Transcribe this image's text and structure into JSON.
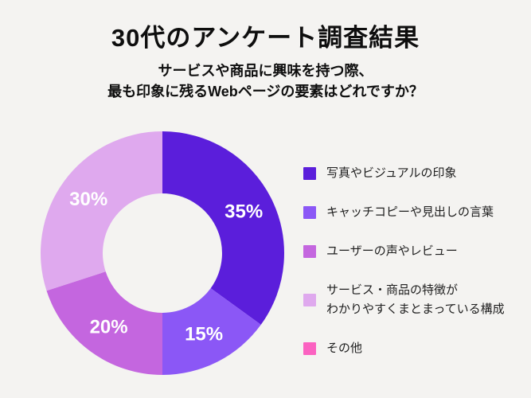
{
  "page": {
    "background_color": "#F4F3F1"
  },
  "header": {
    "title": "30代のアンケート調査結果",
    "subtitle": "サービスや商品に興味を持つ際、\n最も印象に残るWebページの要素はどれですか？"
  },
  "chart_data": {
    "type": "pie",
    "variant": "donut",
    "title": "30代のアンケート調査結果",
    "subtitle": "サービスや商品に興味を持つ際、最も印象に残るWebページの要素はどれですか？",
    "unit": "%",
    "start_angle_deg": 0,
    "direction": "clockwise",
    "inner_radius_ratio": 0.49,
    "legend_position": "right",
    "value_label_color": "#FFFFFF",
    "segments": [
      {
        "label": "写真やビジュアルの印象",
        "value": 35,
        "data_label": "35%",
        "color": "#5B1EDB"
      },
      {
        "label": "キャッチコピーや見出しの言葉",
        "value": 15,
        "data_label": "15%",
        "color": "#8B57F6"
      },
      {
        "label": "ユーザーの声やレビュー",
        "value": 20,
        "data_label": "20%",
        "color": "#C466DF"
      },
      {
        "label": "サービス・商品の特徴が\nわかりやすくまとまっている構成",
        "value": 30,
        "data_label": "30%",
        "color": "#DFA9EE"
      },
      {
        "label": "その他",
        "value": 0,
        "data_label": "",
        "color": "#FB62C1"
      }
    ]
  }
}
